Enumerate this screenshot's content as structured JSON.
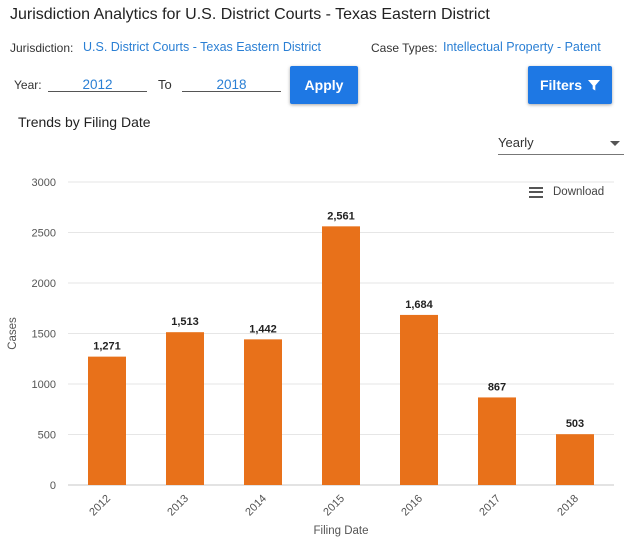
{
  "page": {
    "title": "Jurisdiction Analytics for U.S. District Courts - Texas Eastern District"
  },
  "filters_row": {
    "jurisdiction_label": "Jurisdiction:",
    "jurisdiction_value": "U.S. District Courts - Texas Eastern District",
    "case_types_label": "Case Types:",
    "case_types_value": "Intellectual Property - Patent"
  },
  "year_range": {
    "year_label": "Year:",
    "from": "2012",
    "to_label": "To",
    "to": "2018",
    "apply_label": "Apply",
    "filters_label": "Filters"
  },
  "section": {
    "title": "Trends by Filing Date",
    "period": "Yearly",
    "download_label": "Download"
  },
  "colors": {
    "bar": "#e8711a",
    "accent": "#1e78e4",
    "link": "#2a7fd4"
  },
  "chart_data": {
    "type": "bar",
    "categories": [
      "2012",
      "2013",
      "2014",
      "2015",
      "2016",
      "2017",
      "2018"
    ],
    "values": [
      1271,
      1513,
      1442,
      2561,
      1684,
      867,
      503
    ],
    "value_labels": [
      "1,271",
      "1,513",
      "1,442",
      "2,561",
      "1,684",
      "867",
      "503"
    ],
    "xlabel": "Filing Date",
    "ylabel": "Cases",
    "ylim": [
      0,
      3000
    ],
    "yticks": [
      0,
      500,
      1000,
      1500,
      2000,
      2500,
      3000
    ],
    "grid": true,
    "legend": "none"
  }
}
